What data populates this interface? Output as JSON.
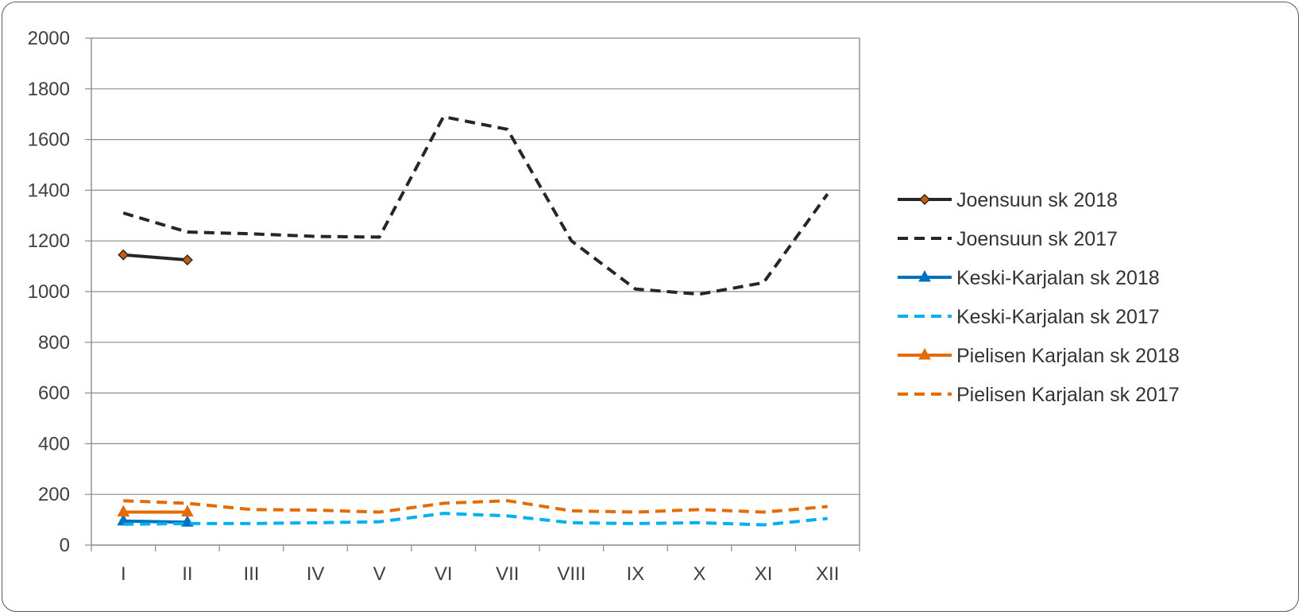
{
  "chart_data": {
    "type": "line",
    "categories": [
      "I",
      "II",
      "III",
      "IV",
      "V",
      "VI",
      "VII",
      "VIII",
      "IX",
      "X",
      "XI",
      "XII"
    ],
    "ylim": [
      0,
      2000
    ],
    "yticks": [
      0,
      200,
      400,
      600,
      800,
      1000,
      1200,
      1400,
      1600,
      1800,
      2000
    ],
    "grid": true,
    "legend_position": "right",
    "series": [
      {
        "name": "Joensuun sk 2018",
        "color": "#262626",
        "dash": "solid",
        "marker": "diamond",
        "marker_color": "#c55a11",
        "values": [
          1145,
          1125,
          null,
          null,
          null,
          null,
          null,
          null,
          null,
          null,
          null,
          null
        ]
      },
      {
        "name": "Joensuun sk 2017",
        "color": "#262626",
        "dash": "dashed",
        "marker": "none",
        "values": [
          1310,
          1235,
          1228,
          1218,
          1215,
          1690,
          1640,
          1200,
          1010,
          990,
          1035,
          1385
        ]
      },
      {
        "name": "Keski-Karjalan sk 2018",
        "color": "#0070c0",
        "dash": "solid",
        "marker": "triangle",
        "marker_color": "#0070c0",
        "values": [
          95,
          90,
          null,
          null,
          null,
          null,
          null,
          null,
          null,
          null,
          null,
          null
        ]
      },
      {
        "name": "Keski-Karjalan sk 2017",
        "color": "#00b0f0",
        "dash": "dashed",
        "marker": "none",
        "values": [
          82,
          85,
          85,
          88,
          92,
          125,
          115,
          88,
          85,
          88,
          80,
          105
        ]
      },
      {
        "name": "Pielisen Karjalan sk 2018",
        "color": "#e36c09",
        "dash": "solid",
        "marker": "triangle",
        "marker_color": "#e36c09",
        "values": [
          130,
          130,
          null,
          null,
          null,
          null,
          null,
          null,
          null,
          null,
          null,
          null
        ]
      },
      {
        "name": "Pielisen Karjalan sk 2017",
        "color": "#e36c09",
        "dash": "dashed",
        "marker": "none",
        "values": [
          175,
          165,
          140,
          138,
          130,
          165,
          175,
          135,
          130,
          140,
          130,
          152
        ]
      }
    ]
  }
}
